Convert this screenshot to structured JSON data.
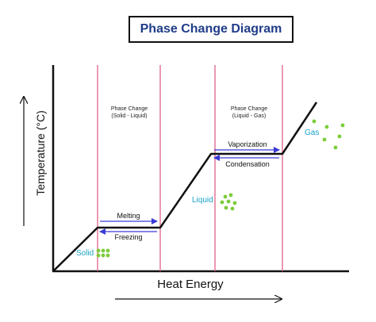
{
  "title": "Phase Change Diagram",
  "axes": {
    "ylabel": "Temperature (°C)",
    "xlabel": "Heat Energy"
  },
  "regions": {
    "solid_liquid": {
      "line1": "Phase Change",
      "line2": "(Solid - Liquid)"
    },
    "liquid_gas": {
      "line1": "Phase Change",
      "line2": "(Liquid - Gas)"
    }
  },
  "transitions": {
    "melting": "Melting",
    "freezing": "Freezing",
    "vaporization": "Vaporization",
    "condensation": "Condensation"
  },
  "states": {
    "solid": "Solid",
    "liquid": "Liquid",
    "gas": "Gas"
  },
  "colors": {
    "title": "#1f3c88",
    "boundary": "#e0608a",
    "arrow": "#3a3ad6",
    "particle": "#7ccc3a",
    "state_label": "#1aa3c8"
  }
}
